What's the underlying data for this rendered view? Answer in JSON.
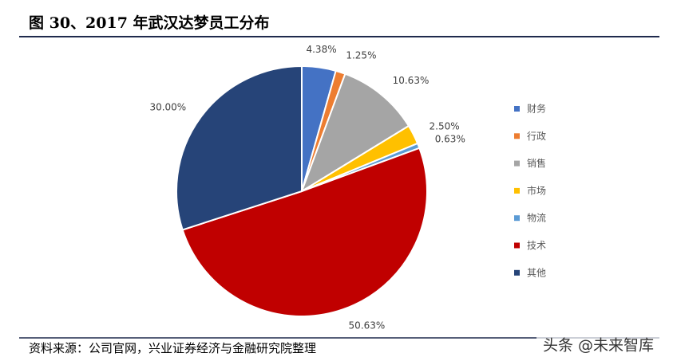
{
  "chart_data": {
    "type": "pie",
    "title": "图 30、2017 年武汉达梦员工分布",
    "categories": [
      "财务",
      "行政",
      "销售",
      "市场",
      "物流",
      "技术",
      "其他"
    ],
    "values": [
      4.38,
      1.25,
      10.63,
      2.5,
      0.63,
      50.63,
      30.0
    ],
    "value_labels": [
      "4.38%",
      "1.25%",
      "10.63%",
      "2.50%",
      "0.63%",
      "50.63%",
      "30.00%"
    ],
    "colors": [
      "#4472c4",
      "#ed7d31",
      "#a5a5a5",
      "#ffc000",
      "#5b9bd5",
      "#c00000",
      "#264478"
    ],
    "source": "资料来源：公司官网，兴业证券经济与金融研究院整理",
    "watermark": "头条 @未来智库"
  }
}
